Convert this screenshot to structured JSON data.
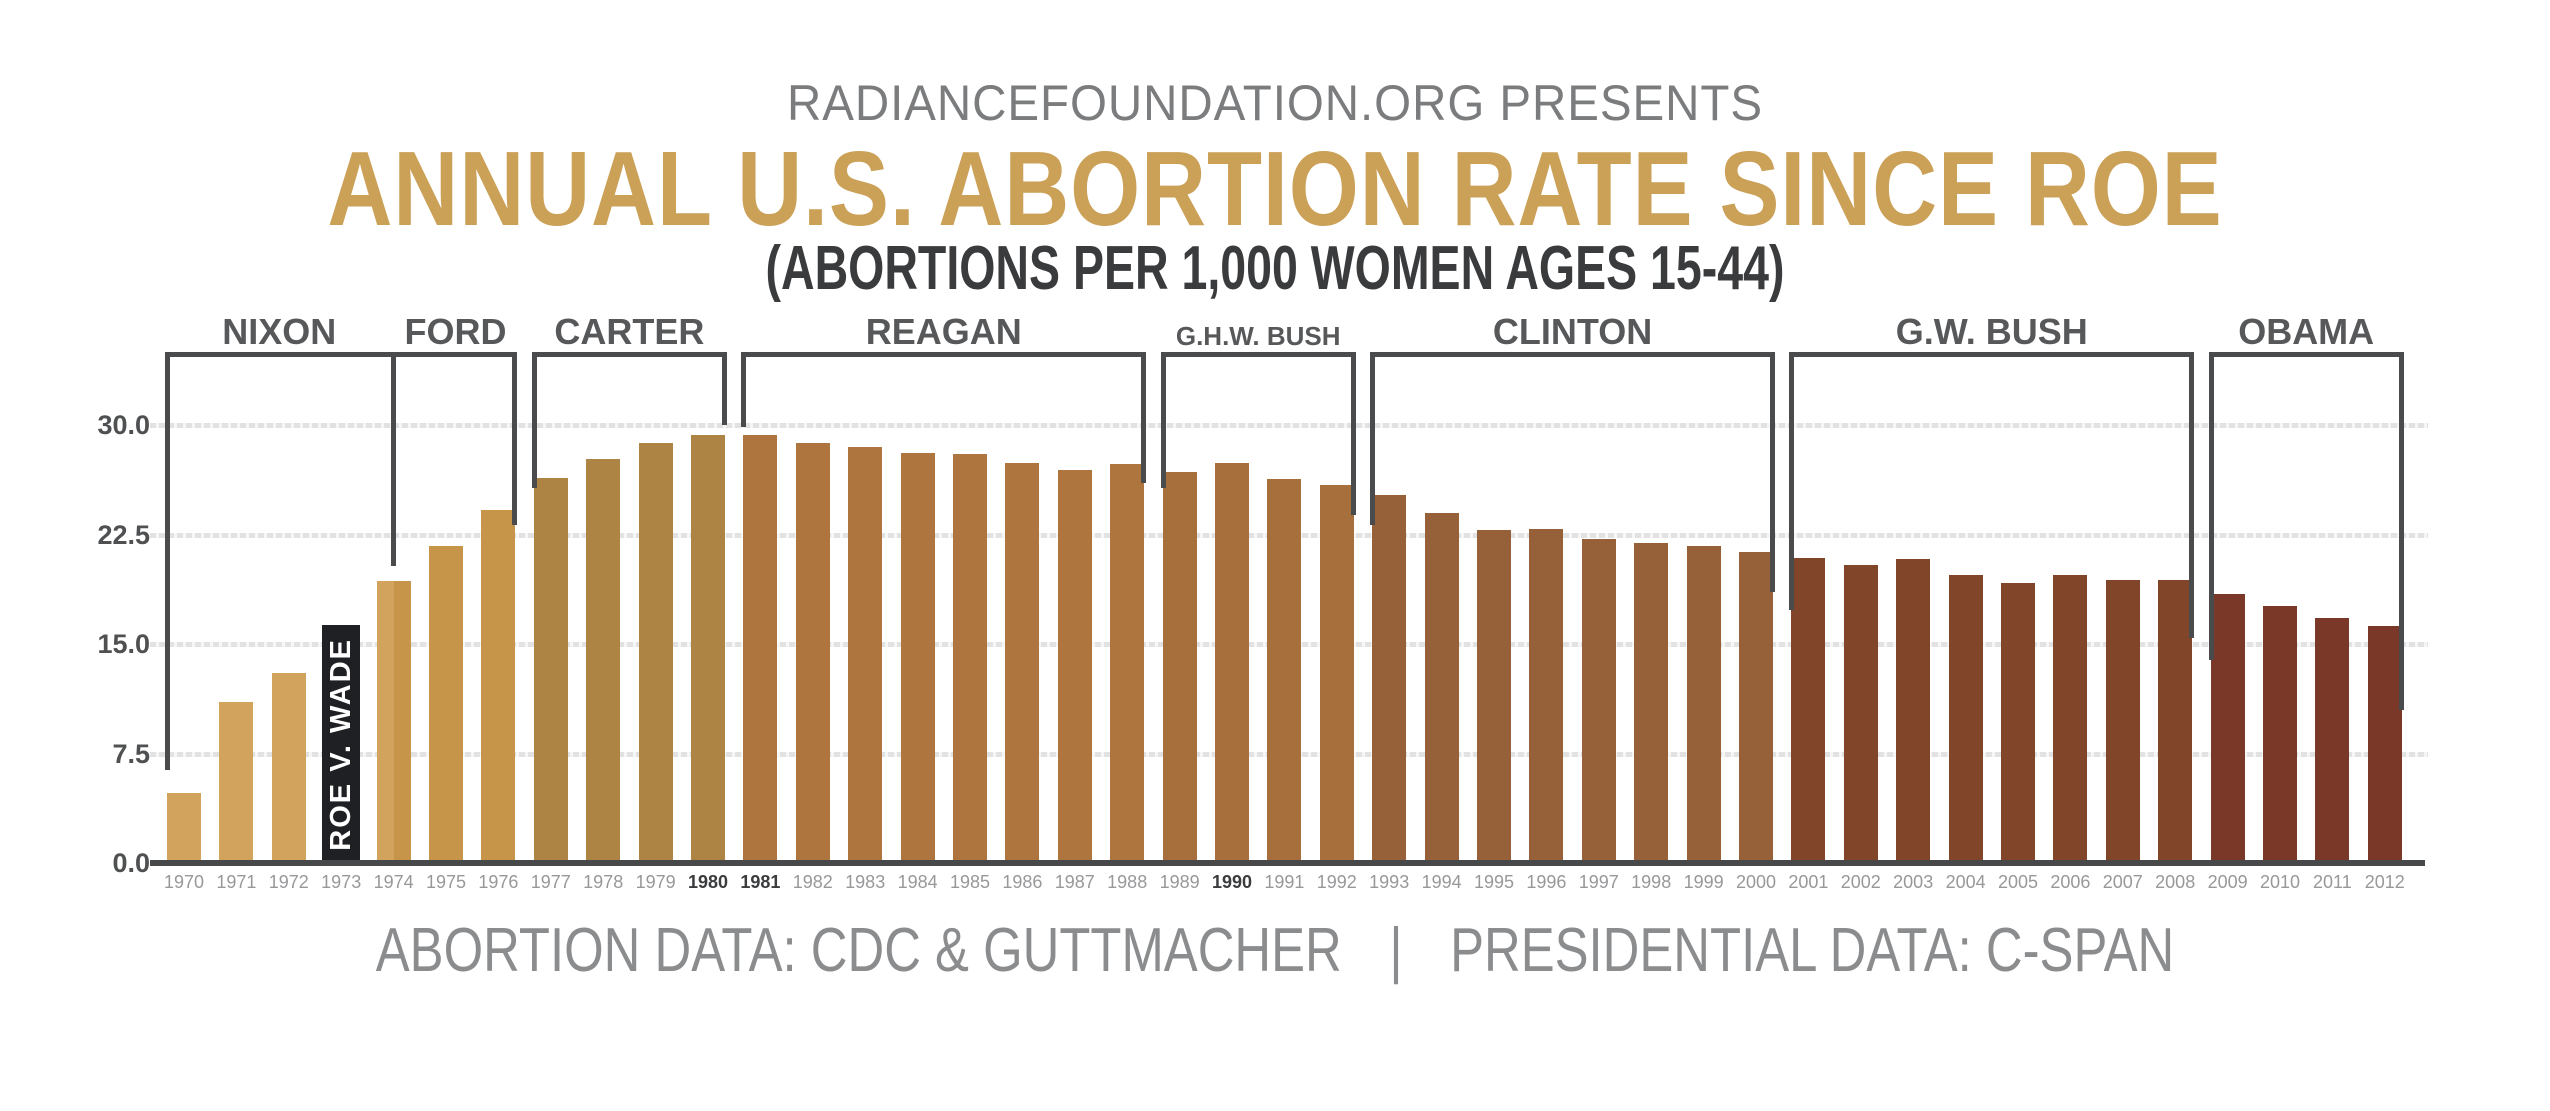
{
  "header": {
    "kicker": "RADIANCEFOUNDATION.ORG PRESENTS",
    "title": "ANNUAL U.S. ABORTION RATE SINCE ROE",
    "subtitle": "(ABORTIONS PER 1,000 WOMEN AGES 15-44)",
    "title_color": "#CBA057"
  },
  "footer": {
    "abortion_source": "ABORTION DATA: CDC & GUTTMACHER",
    "separator": "|",
    "presidential_source": "PRESIDENTIAL DATA: C-SPAN"
  },
  "chart_data": {
    "type": "bar",
    "title": "ANNUAL U.S. ABORTION RATE SINCE ROE",
    "subtitle": "(ABORTIONS PER 1,000 WOMEN AGES 15-44)",
    "unit": "abortions per 1,000 women ages 15-44",
    "x": [
      1970,
      1971,
      1972,
      1973,
      1974,
      1975,
      1976,
      1977,
      1978,
      1979,
      1980,
      1981,
      1982,
      1983,
      1984,
      1985,
      1986,
      1987,
      1988,
      1989,
      1990,
      1991,
      1992,
      1993,
      1994,
      1995,
      1996,
      1997,
      1998,
      1999,
      2000,
      2001,
      2002,
      2003,
      2004,
      2005,
      2006,
      2007,
      2008,
      2009,
      2010,
      2011,
      2012
    ],
    "values": [
      4.8,
      11.0,
      13.0,
      16.3,
      19.3,
      21.7,
      24.2,
      26.4,
      27.7,
      28.8,
      29.3,
      29.3,
      28.8,
      28.5,
      28.1,
      28.0,
      27.4,
      26.9,
      27.3,
      26.8,
      27.4,
      26.3,
      25.9,
      25.2,
      24.0,
      22.8,
      22.9,
      22.2,
      21.9,
      21.7,
      21.3,
      20.9,
      20.4,
      20.8,
      19.7,
      19.2,
      19.7,
      19.4,
      19.4,
      18.4,
      17.6,
      16.8,
      16.2
    ],
    "ylim": [
      0,
      32.5
    ],
    "yticks": [
      0,
      7.5,
      15,
      22.5,
      30
    ],
    "ytick_labels": [
      "0.0",
      "7.5",
      "15.0",
      "22.5",
      "30.0"
    ],
    "grid": true,
    "legend": "none",
    "bold_x_labels": [
      "1980",
      "1981",
      "1990"
    ],
    "annotation": {
      "year": 1973,
      "label": "ROE V. WADE",
      "bar_color": "#1E2023",
      "text_color": "#FFFFFF"
    },
    "presidents": [
      {
        "label": "NIXON",
        "from": 1970,
        "to": 1974.5,
        "color": "#D2A35C"
      },
      {
        "label": "FORD",
        "from": 1974.5,
        "to": 1977,
        "color": "#C69549"
      },
      {
        "label": "CARTER",
        "from": 1977,
        "to": 1981,
        "color": "#AE8444"
      },
      {
        "label": "REAGAN",
        "from": 1981,
        "to": 1989,
        "color": "#AF753E"
      },
      {
        "label": "G.H.W. BUSH",
        "from": 1989,
        "to": 1993,
        "color": "#A76F3C",
        "small_label": true
      },
      {
        "label": "CLINTON",
        "from": 1993,
        "to": 2001,
        "color": "#966038"
      },
      {
        "label": "G.W. BUSH",
        "from": 2001,
        "to": 2009,
        "color": "#81462A"
      },
      {
        "label": "OBAMA",
        "from": 2009,
        "to": 2013,
        "color": "#7A3828"
      }
    ]
  },
  "colors": {
    "axis_line": "#47484A",
    "grid_line": "#E2E2E2",
    "bracket": "#4A4B4D",
    "president_label": "#57585A",
    "ytick_label": "#4F5052",
    "xtick_label": "#97989A",
    "xtick_label_bold": "#3B3C3E",
    "kicker": "#7B7C7E",
    "subtitle": "#3A3B3D",
    "footer": "#8B8C8E"
  }
}
